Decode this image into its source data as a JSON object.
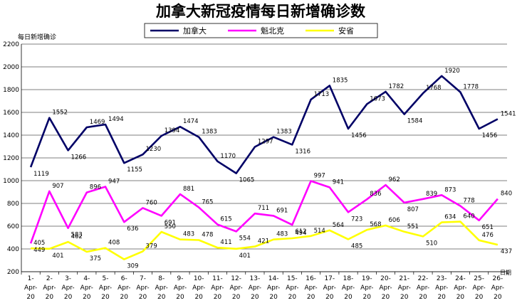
{
  "chart_data": {
    "type": "line",
    "title": "加拿大新冠疫情每日新增确诊数",
    "ylabel": "每日新增确诊",
    "xlabel": "日期",
    "ylim": [
      200,
      2200
    ],
    "y_ticks": [
      200,
      400,
      600,
      800,
      1000,
      1200,
      1400,
      1600,
      1800,
      2000,
      2200
    ],
    "grid": true,
    "legend_position": "top-center",
    "categories": [
      "1-Apr-20",
      "2-Apr-20",
      "3-Apr-20",
      "4-Apr-20",
      "5-Apr-20",
      "6-Apr-20",
      "7-Apr-20",
      "8-Apr-20",
      "9-Apr-20",
      "10-Apr-20",
      "11-Apr-20",
      "12-Apr-20",
      "13-Apr-20",
      "14-Apr-20",
      "15-Apr-20",
      "16-Apr-20",
      "17-Apr-20",
      "18-Apr-20",
      "19-Apr-20",
      "20-Apr-20",
      "21-Apr-20",
      "22-Apr-20",
      "23-Apr-20",
      "24-Apr-20",
      "25-Apr-20",
      "26-Apr-20"
    ],
    "series": [
      {
        "name": "加拿大",
        "color": "#000066",
        "values": [
          1119,
          1552,
          1266,
          1469,
          1494,
          1155,
          1230,
          1394,
          1474,
          1383,
          1170,
          1065,
          1297,
          1383,
          1316,
          1713,
          1835,
          1456,
          1673,
          1782,
          1584,
          1768,
          1920,
          1778,
          1456,
          1541
        ]
      },
      {
        "name": "魁北克",
        "color": "#ff00ff",
        "values": [
          449,
          907,
          583,
          896,
          947,
          636,
          760,
          691,
          881,
          765,
          615,
          554,
          711,
          691,
          612,
          997,
          941,
          723,
          836,
          962,
          807,
          839,
          873,
          778,
          651,
          840
        ]
      },
      {
        "name": "安省",
        "color": "#ffff00",
        "values": [
          405,
          401,
          462,
          375,
          408,
          309,
          379,
          550,
          483,
          478,
          411,
          401,
          421,
          483,
          494,
          514,
          564,
          485,
          568,
          606,
          551,
          510,
          634,
          640,
          476,
          437
        ]
      }
    ]
  }
}
